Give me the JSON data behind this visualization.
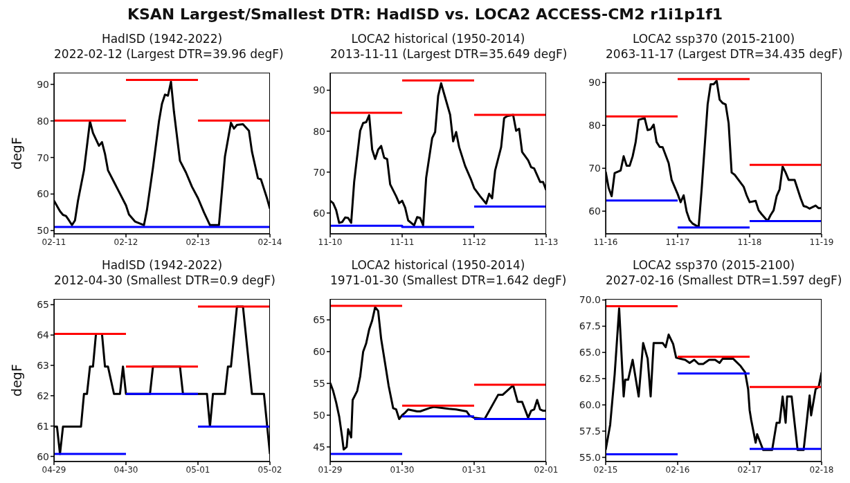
{
  "chart_data": [
    {
      "type": "line",
      "title": "KSAN Largest/Smallest DTR: HadISD vs. LOCA2 ACCESS-CM2 r1i1p1f1",
      "subtitle": "HadISD (1942-2022)\n2022-02-12 (Largest DTR=39.96 degF)",
      "ylabel": "degF",
      "xlim": [
        "--02-11",
        "--02-14"
      ],
      "xticks": [
        {
          "value": "--02-11",
          "label": "02-11"
        },
        {
          "value": "--02-12",
          "label": "02-12"
        },
        {
          "value": "--02-13",
          "label": "02-13"
        },
        {
          "value": "--02-14",
          "label": "02-14"
        }
      ],
      "ylim": [
        49.1,
        93.2
      ],
      "yticks": [
        50,
        60,
        70,
        80,
        90
      ],
      "series": [
        {
          "color": "#000000",
          "x": [
            "--02-11T00:00",
            "--02-11T02:00",
            "--02-11T03:00",
            "--02-11T04:00",
            "--02-11T05:00",
            "--02-11T06:00",
            "--02-11T07:00",
            "--02-11T08:00",
            "--02-11T10:00",
            "--02-11T12:00",
            "--02-11T13:00",
            "--02-11T15:00",
            "--02-11T16:00",
            "--02-11T17:00",
            "--02-11T18:00",
            "--02-11T20:00",
            "--02-11T22:00",
            "--02-12T00:00",
            "--02-12T01:00",
            "--02-12T03:00",
            "--02-12T06:00",
            "--02-12T07:00",
            "--02-12T09:00",
            "--02-12T11:00",
            "--02-12T12:00",
            "--02-12T13:00",
            "--02-12T14:00",
            "--02-12T15:00",
            "--02-12T16:00",
            "--02-12T18:00",
            "--02-12T20:00",
            "--02-12T22:00",
            "--02-13T00:00",
            "--02-13T02:00",
            "--02-13T04:00",
            "--02-13T07:00",
            "--02-13T09:00",
            "--02-13T11:00",
            "--02-13T12:00",
            "--02-13T13:00",
            "--02-13T15:00",
            "--02-13T17:00",
            "--02-13T18:00",
            "--02-13T20:00",
            "--02-13T21:00",
            "--02-13T23:00",
            "--02-14T00:00"
          ],
          "values": [
            58.2,
            55.3,
            54.3,
            54,
            52.8,
            51.5,
            52.8,
            58.2,
            66.5,
            79.9,
            76.7,
            73.2,
            74.2,
            71,
            66.5,
            63.3,
            60.1,
            56.9,
            54.4,
            52.5,
            51.5,
            55.7,
            67.2,
            79.9,
            84.7,
            87.2,
            86.9,
            90.7,
            82.5,
            69.1,
            65.9,
            62,
            58.9,
            55,
            51.5,
            51.5,
            70.3,
            79.5,
            77.9,
            78.9,
            79.1,
            77.3,
            71.6,
            64.3,
            64,
            58.9,
            56
          ]
        },
        {
          "color": "#ff0000",
          "x": [
            "--02-11",
            "--02-12"
          ],
          "values": [
            80.1,
            80.1
          ]
        },
        {
          "color": "#ff0000",
          "x": [
            "--02-12",
            "--02-13"
          ],
          "values": [
            91.2,
            91.2
          ]
        },
        {
          "color": "#ff0000",
          "x": [
            "--02-13",
            "--02-14"
          ],
          "values": [
            80.1,
            80.1
          ]
        },
        {
          "color": "#0000ff",
          "x": [
            "--02-11",
            "--02-12",
            "--02-13",
            "--02-14"
          ],
          "values": [
            51,
            51,
            51,
            51
          ]
        }
      ]
    },
    {
      "type": "line",
      "subtitle": "LOCA2 historical (1950-2014)\n2013-11-11 (Largest DTR=35.649 degF)",
      "xlim": [
        "--11-10",
        "--11-13"
      ],
      "xticks": [
        {
          "value": "--11-10",
          "label": "11-10"
        },
        {
          "value": "--11-11",
          "label": "11-11"
        },
        {
          "value": "--11-12",
          "label": "11-12"
        },
        {
          "value": "--11-13",
          "label": "11-13"
        }
      ],
      "ylim": [
        54.9,
        94.3
      ],
      "yticks": [
        60,
        70,
        80,
        90
      ],
      "series": [
        {
          "color": "#000000",
          "x": [
            "--11-10T00:00",
            "--11-10T01:00",
            "--11-10T02:00",
            "--11-10T03:00",
            "--11-10T04:00",
            "--11-10T05:00",
            "--11-10T06:00",
            "--11-10T07:00",
            "--11-10T08:00",
            "--11-10T10:00",
            "--11-10T11:00",
            "--11-10T12:00",
            "--11-10T13:00",
            "--11-10T14:00",
            "--11-10T15:00",
            "--11-10T16:00",
            "--11-10T17:00",
            "--11-10T18:00",
            "--11-10T19:00",
            "--11-10T20:00",
            "--11-10T22:00",
            "--11-10T23:00",
            "--11-11T00:00",
            "--11-11T01:00",
            "--11-11T02:00",
            "--11-11T04:00",
            "--11-11T05:00",
            "--11-11T06:00",
            "--11-11T07:00",
            "--11-11T08:00",
            "--11-11T10:00",
            "--11-11T11:00",
            "--11-11T12:00",
            "--11-11T13:00",
            "--11-11T14:00",
            "--11-11T16:00",
            "--11-11T17:00",
            "--11-11T18:00",
            "--11-11T19:00",
            "--11-11T21:00",
            "--11-11T23:00",
            "--11-12T00:00",
            "--11-12T02:00",
            "--11-12T04:00",
            "--11-12T05:00",
            "--11-12T06:00",
            "--11-12T07:00",
            "--11-12T09:00",
            "--11-12T10:00",
            "--11-12T11:00",
            "--11-12T13:00",
            "--11-12T14:00",
            "--11-12T15:00",
            "--11-12T16:00",
            "--11-12T18:00",
            "--11-12T19:00",
            "--11-12T20:00",
            "--11-12T22:00",
            "--11-12T23:00",
            "--11-13T00:00"
          ],
          "values": [
            63.0,
            62.4,
            60.7,
            57.6,
            57.8,
            58.9,
            58.8,
            57.6,
            67.6,
            80.1,
            82.0,
            82.2,
            83.9,
            75.5,
            73.2,
            75.5,
            76.4,
            73.5,
            73.2,
            67,
            64.1,
            62.4,
            63,
            61.3,
            58.2,
            57,
            59,
            58.8,
            57,
            68.6,
            78.3,
            79.8,
            88.6,
            91.7,
            89.1,
            84,
            77.5,
            79.8,
            76.1,
            71.5,
            68.1,
            66.1,
            64.1,
            62.3,
            64.7,
            63.6,
            70.4,
            76.1,
            83.2,
            83.7,
            84,
            80.1,
            80.6,
            74.9,
            72.9,
            71.2,
            70.9,
            67.6,
            67.6,
            65.6
          ]
        },
        {
          "color": "#ff0000",
          "x": [
            "--11-10",
            "--11-11"
          ],
          "values": [
            84.5,
            84.5
          ]
        },
        {
          "color": "#ff0000",
          "x": [
            "--11-11",
            "--11-12"
          ],
          "values": [
            92.4,
            92.4
          ]
        },
        {
          "color": "#ff0000",
          "x": [
            "--11-12",
            "--11-13"
          ],
          "values": [
            84.0,
            84.0
          ]
        },
        {
          "color": "#0000ff",
          "x": [
            "--11-10",
            "--11-11",
            "--11-11",
            "--11-12"
          ],
          "values": [
            56.9,
            56.9,
            56.6,
            56.6
          ]
        },
        {
          "color": "#0000ff",
          "x": [
            "--11-12",
            "--11-13"
          ],
          "values": [
            61.6,
            61.6
          ]
        }
      ]
    },
    {
      "type": "line",
      "subtitle": "LOCA2 ssp370 (2015-2100)\n2063-11-17 (Largest DTR=34.435 degF)",
      "xlim": [
        "--11-16",
        "--11-19"
      ],
      "xticks": [
        {
          "value": "--11-16",
          "label": "11-16"
        },
        {
          "value": "--11-17",
          "label": "11-17"
        },
        {
          "value": "--11-18",
          "label": "11-18"
        },
        {
          "value": "--11-19",
          "label": "11-19"
        }
      ],
      "ylim": [
        54.7,
        92.3
      ],
      "yticks": [
        60,
        70,
        80,
        90
      ],
      "series": [
        {
          "color": "#000000",
          "x": [
            "--11-16T00:00",
            "--11-16T01:00",
            "--11-16T02:00",
            "--11-16T03:00",
            "--11-16T05:00",
            "--11-16T06:00",
            "--11-16T07:00",
            "--11-16T08:00",
            "--11-16T09:00",
            "--11-16T10:00",
            "--11-16T11:00",
            "--11-16T13:00",
            "--11-16T14:00",
            "--11-16T15:00",
            "--11-16T16:00",
            "--11-16T17:00",
            "--11-16T18:00",
            "--11-16T19:00",
            "--11-16T21:00",
            "--11-16T22:00",
            "--11-17T00:00",
            "--11-17T01:00",
            "--11-17T02:00",
            "--11-17T03:00",
            "--11-17T04:00",
            "--11-17T05:00",
            "--11-17T07:00",
            "--11-17T08:00",
            "--11-17T10:00",
            "--11-17T11:00",
            "--11-17T12:00",
            "--11-17T13:00",
            "--11-17T14:00",
            "--11-17T15:00",
            "--11-17T16:00",
            "--11-17T17:00",
            "--11-17T18:00",
            "--11-17T19:00",
            "--11-17T22:00",
            "--11-17T23:00",
            "--11-18T00:00",
            "--11-18T02:00",
            "--11-18T03:00",
            "--11-18T04:00",
            "--11-18T06:00",
            "--11-18T07:00",
            "--11-18T08:00",
            "--11-18T09:00",
            "--11-18T10:00",
            "--11-18T11:00",
            "--11-18T12:00",
            "--11-18T13:00",
            "--11-18T15:00",
            "--11-18T17:00",
            "--11-18T18:00",
            "--11-18T19:00",
            "--11-18T20:00",
            "--11-18T22:00",
            "--11-18T23:00",
            "--11-19T00:00"
          ],
          "values": [
            69.2,
            65.4,
            63.5,
            68.9,
            69.5,
            72.8,
            70.6,
            70.6,
            72.8,
            76.1,
            81.3,
            81.7,
            78.9,
            79.1,
            80.2,
            76.1,
            75,
            74.9,
            71.2,
            67.3,
            64.0,
            62.1,
            63.7,
            59.9,
            57.9,
            57.1,
            56.3,
            65.1,
            84.9,
            89.6,
            89.6,
            90.4,
            86,
            85.2,
            84.9,
            80.5,
            69.0,
            68.5,
            65.7,
            63.7,
            62.1,
            62.4,
            60.2,
            59.3,
            57.7,
            59.1,
            60.2,
            63.5,
            65.1,
            70.4,
            69,
            67.3,
            67.3,
            63,
            61.2,
            61.0,
            60.6,
            61.3,
            60.7,
            60.7
          ]
        },
        {
          "color": "#ff0000",
          "x": [
            "--11-16",
            "--11-17"
          ],
          "values": [
            82.1,
            82.1
          ]
        },
        {
          "color": "#ff0000",
          "x": [
            "--11-17",
            "--11-18"
          ],
          "values": [
            90.8,
            90.8
          ]
        },
        {
          "color": "#ff0000",
          "x": [
            "--11-18",
            "--11-19"
          ],
          "values": [
            70.8,
            70.8
          ]
        },
        {
          "color": "#0000ff",
          "x": [
            "--11-16",
            "--11-17"
          ],
          "values": [
            62.5,
            62.5
          ]
        },
        {
          "color": "#0000ff",
          "x": [
            "--11-17",
            "--11-18"
          ],
          "values": [
            56.2,
            56.2
          ]
        },
        {
          "color": "#0000ff",
          "x": [
            "--11-18",
            "--11-19"
          ],
          "values": [
            57.7,
            57.7
          ]
        }
      ]
    },
    {
      "type": "line",
      "subtitle": "HadISD (1942-2022)\n2012-04-30 (Smallest DTR=0.9 degF)",
      "ylabel": "degF",
      "xlim": [
        "--04-29",
        "--05-02"
      ],
      "xticks": [
        {
          "value": "--04-29",
          "label": "04-29"
        },
        {
          "value": "--04-30",
          "label": "04-30"
        },
        {
          "value": "--05-01",
          "label": "05-01"
        },
        {
          "value": "--05-02",
          "label": "05-02"
        }
      ],
      "ylim": [
        59.83,
        65.19
      ],
      "yticks": [
        60,
        61,
        62,
        63,
        64,
        65
      ],
      "series": [
        {
          "color": "#000000",
          "x": [
            "--04-29T00:00",
            "--04-29T01:00",
            "--04-29T02:00",
            "--04-29T03:00",
            "--04-29T09:00",
            "--04-29T10:00",
            "--04-29T11:00",
            "--04-29T12:00",
            "--04-29T13:00",
            "--04-29T14:00",
            "--04-29T16:00",
            "--04-29T17:00",
            "--04-29T18:00",
            "--04-29T20:00",
            "--04-29T22:00",
            "--04-29T23:00",
            "--04-30T00:00",
            "--04-30T08:00",
            "--04-30T09:00",
            "--04-30T18:00",
            "--04-30T19:00",
            "--05-01T03:00",
            "--05-01T04:00",
            "--05-01T05:00",
            "--05-01T09:00",
            "--05-01T10:00",
            "--05-01T11:00",
            "--05-01T13:00",
            "--05-01T15:00",
            "--05-01T18:00",
            "--05-01T22:00",
            "--05-02T00:00"
          ],
          "values": [
            60.98,
            60.98,
            60.08,
            60.98,
            60.98,
            62.06,
            62.06,
            62.96,
            62.96,
            64.04,
            64.04,
            62.96,
            62.96,
            62.06,
            62.06,
            62.96,
            62.06,
            62.06,
            62.96,
            62.96,
            62.06,
            62.06,
            60.98,
            62.06,
            62.06,
            62.96,
            62.96,
            64.94,
            64.94,
            62.06,
            62.06,
            60.08
          ]
        },
        {
          "color": "#ff0000",
          "x": [
            "--04-29",
            "--04-30"
          ],
          "values": [
            64.04,
            64.04
          ]
        },
        {
          "color": "#ff0000",
          "x": [
            "--04-30",
            "--05-01"
          ],
          "values": [
            62.96,
            62.96
          ]
        },
        {
          "color": "#ff0000",
          "x": [
            "--05-01",
            "--05-02"
          ],
          "values": [
            64.94,
            64.94
          ]
        },
        {
          "color": "#0000ff",
          "x": [
            "--04-29",
            "--04-30"
          ],
          "values": [
            60.08,
            60.08
          ]
        },
        {
          "color": "#0000ff",
          "x": [
            "--04-30",
            "--05-01"
          ],
          "values": [
            62.06,
            62.06
          ]
        },
        {
          "color": "#0000ff",
          "x": [
            "--05-01",
            "--05-02"
          ],
          "values": [
            60.98,
            60.98
          ]
        }
      ]
    },
    {
      "type": "line",
      "subtitle": "LOCA2 historical (1950-2014)\n1971-01-30 (Smallest DTR=1.642 degF)",
      "xlim": [
        "--01-29",
        "--02-01"
      ],
      "xticks": [
        {
          "value": "--01-29",
          "label": "01-29"
        },
        {
          "value": "--01-30",
          "label": "01-30"
        },
        {
          "value": "--01-31",
          "label": "01-31"
        },
        {
          "value": "--02-01",
          "label": "02-01"
        }
      ],
      "ylim": [
        42.7,
        68.3
      ],
      "yticks": [
        45,
        50,
        55,
        60,
        65
      ],
      "series": [
        {
          "color": "#000000",
          "x": [
            "--01-29T00:00",
            "--01-29T01:00",
            "--01-29T02:00",
            "--01-29T03:00",
            "--01-29T04:00",
            "--01-29T04:30",
            "--01-29T05:30",
            "--01-29T06:00",
            "--01-29T07:00",
            "--01-29T07:30",
            "--01-29T09:00",
            "--01-29T10:00",
            "--01-29T11:00",
            "--01-29T12:00",
            "--01-29T13:00",
            "--01-29T14:00",
            "--01-29T15:00",
            "--01-29T16:00",
            "--01-29T17:00",
            "--01-29T18:30",
            "--01-29T19:30",
            "--01-29T21:00",
            "--01-29T22:00",
            "--01-29T23:00",
            "--01-30T00:00",
            "--01-30T01:00",
            "--01-30T02:00",
            "--01-30T05:00",
            "--01-30T06:00",
            "--01-30T09:00",
            "--01-30T10:30",
            "--01-30T15:30",
            "--01-30T18:00",
            "--01-30T21:30",
            "--01-30T22:30",
            "--01-31T00:00",
            "--01-31T03:30",
            "--01-31T08:00",
            "--01-31T09:30",
            "--01-31T13:00",
            "--01-31T14:30",
            "--01-31T16:00",
            "--01-31T18:00",
            "--01-31T19:00",
            "--01-31T20:00",
            "--01-31T21:00",
            "--01-31T22:00",
            "--01-31T23:00",
            "--02-01T00:00"
          ],
          "values": [
            55.1,
            53.8,
            52,
            49.8,
            46.5,
            44.6,
            45,
            47.8,
            46.5,
            52.4,
            53.8,
            56.1,
            60,
            61.3,
            63.5,
            64.9,
            67,
            66.4,
            62,
            57.6,
            54.6,
            51.1,
            50.9,
            49.4,
            50,
            50.4,
            50.9,
            50.6,
            50.6,
            51.1,
            51.3,
            51,
            50.9,
            50.6,
            49.9,
            49.6,
            49.4,
            53.2,
            53.2,
            54.7,
            52.1,
            52.1,
            49.6,
            50.7,
            50.9,
            52.4,
            50.9,
            50.7,
            50.7
          ]
        },
        {
          "color": "#ff0000",
          "x": [
            "--01-29",
            "--01-30"
          ],
          "values": [
            67.2,
            67.2
          ]
        },
        {
          "color": "#ff0000",
          "x": [
            "--01-30",
            "--01-31"
          ],
          "values": [
            51.5,
            51.5
          ]
        },
        {
          "color": "#ff0000",
          "x": [
            "--01-31",
            "--02-01"
          ],
          "values": [
            54.8,
            54.8
          ]
        },
        {
          "color": "#0000ff",
          "x": [
            "--01-29",
            "--01-30"
          ],
          "values": [
            43.9,
            43.9
          ]
        },
        {
          "color": "#0000ff",
          "x": [
            "--01-30",
            "--01-31"
          ],
          "values": [
            49.8,
            49.8
          ]
        },
        {
          "color": "#0000ff",
          "x": [
            "--01-31",
            "--02-01"
          ],
          "values": [
            49.4,
            49.4
          ]
        }
      ]
    },
    {
      "type": "line",
      "subtitle": "LOCA2 ssp370 (2015-2100)\n2027-02-16 (Smallest DTR=1.597 degF)",
      "xlim": [
        "--02-15",
        "--02-18"
      ],
      "xticks": [
        {
          "value": "--02-15",
          "label": "02-15"
        },
        {
          "value": "--02-16",
          "label": "02-16"
        },
        {
          "value": "--02-17",
          "label": "02-17"
        },
        {
          "value": "--02-18",
          "label": "02-18"
        }
      ],
      "ylim": [
        54.6,
        70.1
      ],
      "yticks": [
        {
          "value": 55,
          "label": "55.0"
        },
        {
          "value": 57.5,
          "label": "57.5"
        },
        {
          "value": 60,
          "label": "60.0"
        },
        {
          "value": 62.5,
          "label": "62.5"
        },
        {
          "value": 65,
          "label": "65.0"
        },
        {
          "value": 67.5,
          "label": "67.5"
        },
        {
          "value": 70,
          "label": "70.0"
        }
      ],
      "series": [
        {
          "color": "#000000",
          "x": [
            "--02-15T00:00",
            "--02-15T01:30",
            "--02-15T03:00",
            "--02-15T04:30",
            "--02-15T06:00",
            "--02-15T06:30",
            "--02-15T07:30",
            "--02-15T09:00",
            "--02-15T11:00",
            "--02-15T12:30",
            "--02-15T14:00",
            "--02-15T15:00",
            "--02-15T16:00",
            "--02-15T19:00",
            "--02-15T20:00",
            "--02-15T21:00",
            "--02-15T22:30",
            "--02-15T23:30",
            "--02-16T01:00",
            "--02-16T02:30",
            "--02-16T04:00",
            "--02-16T05:30",
            "--02-16T07:00",
            "--02-16T08:30",
            "--02-16T10:30",
            "--02-16T12:30",
            "--02-16T14:00",
            "--02-16T15:00",
            "--02-16T18:30",
            "--02-16T21:00",
            "--02-16T22:30",
            "--02-16T23:30",
            "--02-17T00:00",
            "--02-17T00:30",
            "--02-17T02:00",
            "--02-17T02:30",
            "--02-17T04:30",
            "--02-17T07:30",
            "--02-17T09:00",
            "--02-17T10:00",
            "--02-17T11:00",
            "--02-17T12:00",
            "--02-17T12:30",
            "--02-17T14:00",
            "--02-17T16:00",
            "--02-17T18:00",
            "--02-17T20:00",
            "--02-17T20:30",
            "--02-17T22:00",
            "--02-17T23:00",
            "--02-18T00:00"
          ],
          "values": [
            55.7,
            58.1,
            62.9,
            69.2,
            60.8,
            62.4,
            62.4,
            64.3,
            60.8,
            65.9,
            64.4,
            60.8,
            65.9,
            65.9,
            65.5,
            66.7,
            65.8,
            64.5,
            64.4,
            64.3,
            64.0,
            64.3,
            63.9,
            63.9,
            64.3,
            64.3,
            64,
            64.4,
            64.4,
            63.7,
            63.1,
            61.5,
            59.5,
            58.6,
            56.4,
            57.2,
            55.7,
            55.7,
            58.3,
            58.3,
            60.8,
            58.3,
            60.8,
            60.8,
            55.7,
            55.7,
            60.9,
            59,
            61.5,
            61.7,
            63.1
          ]
        },
        {
          "color": "#ff0000",
          "x": [
            "--02-15",
            "--02-16"
          ],
          "values": [
            69.4,
            69.4
          ]
        },
        {
          "color": "#ff0000",
          "x": [
            "--02-16",
            "--02-17"
          ],
          "values": [
            64.6,
            64.6
          ]
        },
        {
          "color": "#ff0000",
          "x": [
            "--02-17",
            "--02-18"
          ],
          "values": [
            61.7,
            61.7
          ]
        },
        {
          "color": "#0000ff",
          "x": [
            "--02-15",
            "--02-16"
          ],
          "values": [
            55.3,
            55.3
          ]
        },
        {
          "color": "#0000ff",
          "x": [
            "--02-16",
            "--02-17"
          ],
          "values": [
            63.0,
            63.0
          ]
        },
        {
          "color": "#0000ff",
          "x": [
            "--02-17",
            "--02-18"
          ],
          "values": [
            55.8,
            55.8
          ]
        }
      ]
    }
  ]
}
